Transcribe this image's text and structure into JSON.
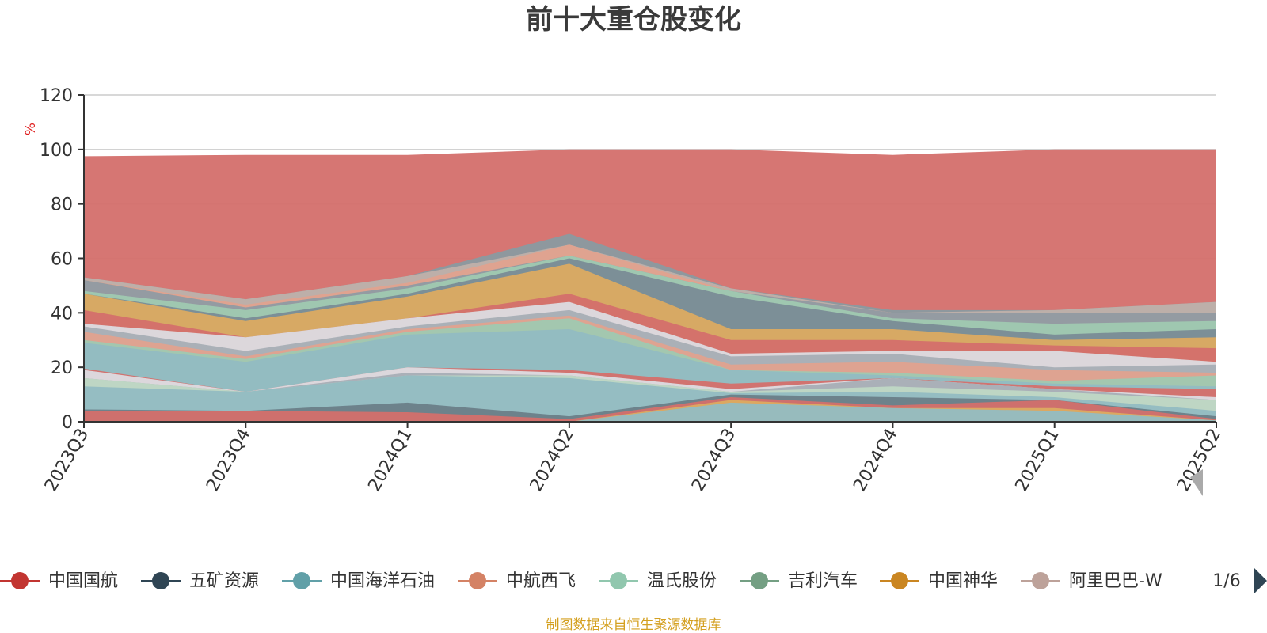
{
  "chart_data": {
    "type": "area",
    "title": "前十大重仓股变化",
    "ylabel": "%",
    "ylim": [
      0,
      120
    ],
    "yticks": [
      "0",
      "20",
      "40",
      "60",
      "80",
      "100",
      "120"
    ],
    "categories": [
      "2023Q3",
      "2023Q4",
      "2024Q1",
      "2024Q2",
      "2024Q3",
      "2024Q4",
      "2025Q1",
      "2025Q2"
    ],
    "grid": true,
    "legend_position": "bottom",
    "layers": [
      {
        "color": "#d46f6c",
        "lower": [
          0,
          0,
          0,
          0,
          0,
          0,
          0,
          0
        ],
        "upper": [
          97.5,
          98,
          98,
          100,
          100,
          98,
          100,
          100
        ]
      },
      {
        "color": "#8a9aa0",
        "lower": [
          0,
          0,
          0,
          0,
          0,
          0,
          0,
          0
        ],
        "upper": [
          53,
          45,
          53.5,
          69,
          49,
          41,
          41,
          44
        ]
      },
      {
        "color": "#c0b0aa",
        "lower": [
          0,
          0,
          0,
          0,
          0,
          0,
          0,
          0
        ],
        "upper": [
          53,
          45,
          53.5,
          65,
          49,
          40,
          41,
          44
        ]
      },
      {
        "color": "#e0a28e",
        "lower": [
          0,
          0,
          0,
          0,
          0,
          0,
          0,
          0
        ],
        "upper": [
          52,
          43,
          51,
          65,
          48,
          40,
          40,
          40
        ]
      },
      {
        "color": "#8f9ba3",
        "lower": [
          0,
          0,
          0,
          0,
          0,
          0,
          0,
          0
        ],
        "upper": [
          52,
          42,
          50,
          61,
          48,
          40,
          40,
          40
        ]
      },
      {
        "color": "#9fc9b1",
        "lower": [
          0,
          0,
          0,
          0,
          0,
          0,
          0,
          0
        ],
        "upper": [
          48,
          41,
          49,
          61,
          48,
          38,
          36,
          37
        ]
      },
      {
        "color": "#7a8c96",
        "lower": [
          0,
          0,
          0,
          0,
          0,
          0,
          0,
          0
        ],
        "upper": [
          47,
          38,
          47,
          60,
          46,
          37,
          32,
          34
        ]
      },
      {
        "color": "#dcab61",
        "lower": [
          0,
          0,
          0,
          0,
          0,
          0,
          0,
          0
        ],
        "upper": [
          47,
          37,
          46,
          58,
          34,
          34,
          30,
          31
        ]
      },
      {
        "color": "#d46f6c",
        "lower": [
          0,
          0,
          0,
          0,
          0,
          0,
          0,
          0
        ],
        "upper": [
          41,
          31,
          38,
          47,
          30,
          30,
          28,
          27
        ]
      },
      {
        "color": "#dcdce2",
        "lower": [
          0,
          0,
          0,
          0,
          0,
          0,
          0,
          0
        ],
        "upper": [
          36,
          31,
          38,
          44,
          25,
          26,
          26,
          22
        ]
      },
      {
        "color": "#a7aeb5",
        "lower": [
          0,
          0,
          0,
          0,
          0,
          0,
          0,
          0
        ],
        "upper": [
          35,
          26,
          35,
          41,
          24,
          25,
          20,
          21
        ]
      },
      {
        "color": "#e0a28e",
        "lower": [
          0,
          0,
          0,
          0,
          0,
          0,
          0,
          0
        ],
        "upper": [
          33,
          24,
          34,
          39,
          21,
          22,
          19,
          18
        ]
      },
      {
        "color": "#9fc9b1",
        "lower": [
          0,
          0,
          0,
          0,
          0,
          0,
          0,
          0
        ],
        "upper": [
          30,
          23,
          33,
          38,
          19,
          18,
          15,
          17
        ]
      },
      {
        "color": "#92bcc2",
        "lower": [
          0,
          0,
          0,
          0,
          0,
          0,
          0,
          0
        ],
        "upper": [
          29,
          22,
          32,
          34,
          19,
          17,
          14,
          13
        ]
      },
      {
        "color": "#d46f6c",
        "lower": [
          0,
          0,
          0,
          0,
          0,
          0,
          0,
          0
        ],
        "upper": [
          19.5,
          11,
          20,
          19,
          14,
          16,
          13,
          12
        ]
      },
      {
        "color": "#dcdce2",
        "lower": [
          0,
          0,
          0,
          0,
          0,
          0,
          0,
          0
        ],
        "upper": [
          19,
          11,
          20,
          18,
          12,
          16,
          12,
          9
        ]
      },
      {
        "color": "#a7aeb5",
        "lower": [
          0,
          0,
          0,
          0,
          0,
          0,
          0,
          0
        ],
        "upper": [
          16,
          11,
          18,
          17,
          11,
          16,
          12,
          8
        ]
      },
      {
        "color": "#bfd8c4",
        "lower": [
          0,
          0,
          0,
          0,
          0,
          0,
          0,
          0
        ],
        "upper": [
          16,
          11,
          17,
          17,
          11,
          13,
          11,
          8
        ]
      },
      {
        "color": "#92bcc2",
        "lower": [
          0,
          0,
          0,
          0,
          0,
          0,
          0,
          0
        ],
        "upper": [
          13,
          11,
          17,
          16,
          10.5,
          11,
          9,
          4
        ]
      },
      {
        "color": "#6a7e88",
        "lower": [
          0,
          0,
          0,
          0,
          0,
          0,
          0,
          0
        ],
        "upper": [
          4.5,
          4,
          7,
          2,
          10,
          9,
          8,
          2
        ]
      },
      {
        "color": "#d46f6c",
        "lower": [
          0,
          0,
          0,
          0,
          0,
          0,
          0,
          0
        ],
        "upper": [
          4,
          4,
          3.5,
          1,
          9,
          6,
          8,
          1
        ]
      },
      {
        "color": "#dcab61",
        "lower": [
          0,
          0,
          0,
          0,
          0,
          0,
          0,
          0
        ],
        "upper": [
          0,
          0,
          0,
          0,
          8,
          5,
          5,
          0.5
        ]
      },
      {
        "color": "#92bcc2",
        "lower": [
          0,
          0,
          0,
          0,
          0,
          0,
          0,
          0
        ],
        "upper": [
          0,
          0,
          0,
          0,
          7,
          5,
          4,
          0.5
        ]
      }
    ],
    "legend": [
      {
        "name": "中国国航",
        "color": "#c23531"
      },
      {
        "name": "五矿资源",
        "color": "#2f4554"
      },
      {
        "name": "中国海洋石油",
        "color": "#61a0a8"
      },
      {
        "name": "中航西飞",
        "color": "#d48265"
      },
      {
        "name": "温氏股份",
        "color": "#91c7ae"
      },
      {
        "name": "吉利汽车",
        "color": "#749f83"
      },
      {
        "name": "中国神华",
        "color": "#ca8622"
      },
      {
        "name": "阿里巴巴-W",
        "color": "#bda29a"
      }
    ],
    "legend_page": "1/6",
    "footer": "制图数据来自恒生聚源数据库"
  }
}
